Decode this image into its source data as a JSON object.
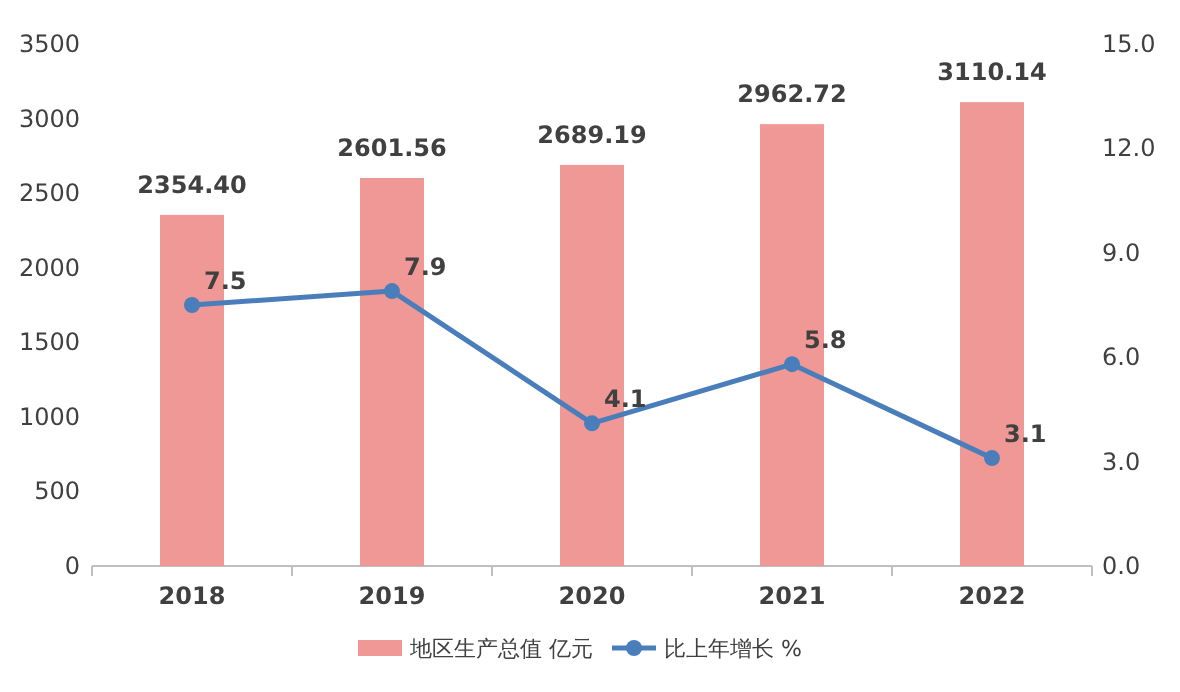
{
  "chart_data": {
    "type": "bar",
    "categories": [
      "2018",
      "2019",
      "2020",
      "2021",
      "2022"
    ],
    "series": [
      {
        "name": "地区生产总值 亿元",
        "color": "#f09896",
        "values": [
          2354.4,
          2601.56,
          2689.19,
          2962.72,
          3110.14
        ],
        "value_labels": [
          "2354.40",
          "2601.56",
          "2689.19",
          "2962.72",
          "3110.14"
        ]
      },
      {
        "name": "比上年增长 %",
        "type": "line",
        "axis": "y2",
        "color": "#4a7ebb",
        "values": [
          7.5,
          7.9,
          4.1,
          5.8,
          3.1
        ],
        "value_labels": [
          "7.5",
          "7.9",
          "4.1",
          "5.8",
          "3.1"
        ]
      }
    ],
    "ylim": [
      0,
      3500
    ],
    "yticks": [
      0,
      500,
      1000,
      1500,
      2000,
      2500,
      3000,
      3500
    ],
    "y2lim": [
      0,
      15
    ],
    "y2ticks": [
      {
        "value": 0,
        "label": "0.0"
      },
      {
        "value": 3,
        "label": "3.0"
      },
      {
        "value": 6,
        "label": "6.0"
      },
      {
        "value": 9,
        "label": "9.0"
      },
      {
        "value": 12,
        "label": "12.0"
      },
      {
        "value": 15,
        "label": "15.0"
      }
    ],
    "legend": "bottom",
    "marker": "circle",
    "line_style": "solid"
  }
}
